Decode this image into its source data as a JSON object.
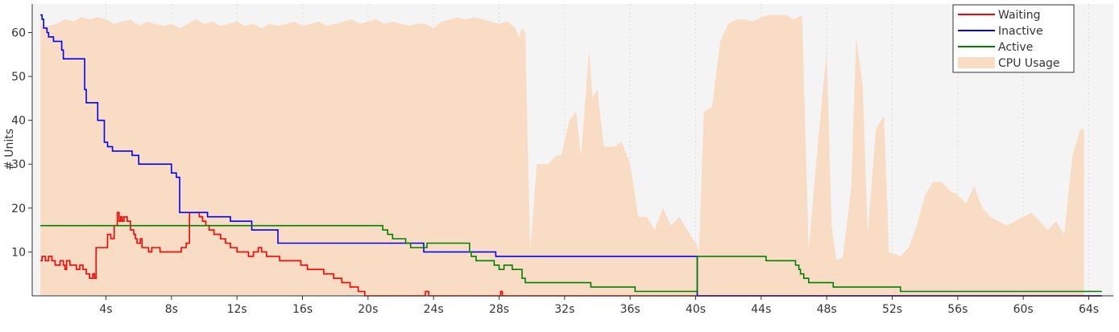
{
  "chart_data": {
    "type": "line",
    "ylabel": "# Units",
    "xlabel": "",
    "xlim": [
      -0.5,
      65.5
    ],
    "ylim": [
      0,
      66.5
    ],
    "x_ticks": [
      4,
      8,
      12,
      16,
      20,
      24,
      28,
      32,
      36,
      40,
      44,
      48,
      52,
      56,
      60,
      64
    ],
    "x_tick_labels": [
      "4s",
      "8s",
      "12s",
      "16s",
      "20s",
      "24s",
      "28s",
      "32s",
      "36s",
      "40s",
      "44s",
      "48s",
      "52s",
      "56s",
      "60s",
      "64s"
    ],
    "y_ticks": [
      10,
      20,
      30,
      40,
      50,
      60
    ],
    "y_tick_labels": [
      "10",
      "20",
      "30",
      "40",
      "50",
      "60"
    ],
    "grid": "vertical dotted",
    "legend_position": "top-right",
    "series": [
      {
        "name": "Waiting",
        "type": "step",
        "color": "#ff0000",
        "points": [
          [
            0.0,
            8
          ],
          [
            0.1,
            9
          ],
          [
            0.3,
            8
          ],
          [
            0.5,
            9
          ],
          [
            0.7,
            8
          ],
          [
            0.9,
            7
          ],
          [
            1.2,
            8
          ],
          [
            1.4,
            7
          ],
          [
            1.5,
            6
          ],
          [
            1.6,
            8
          ],
          [
            1.8,
            7
          ],
          [
            2.0,
            7
          ],
          [
            2.2,
            6
          ],
          [
            2.4,
            7
          ],
          [
            2.6,
            6
          ],
          [
            2.8,
            5
          ],
          [
            3.0,
            4
          ],
          [
            3.2,
            5
          ],
          [
            3.3,
            4
          ],
          [
            3.4,
            11
          ],
          [
            3.9,
            11
          ],
          [
            4.1,
            14
          ],
          [
            4.3,
            13
          ],
          [
            4.5,
            16
          ],
          [
            4.7,
            19
          ],
          [
            4.8,
            17
          ],
          [
            4.9,
            18
          ],
          [
            5.0,
            17
          ],
          [
            5.1,
            18
          ],
          [
            5.3,
            17
          ],
          [
            5.5,
            15
          ],
          [
            5.7,
            14
          ],
          [
            5.8,
            13
          ],
          [
            5.9,
            12
          ],
          [
            6.1,
            13
          ],
          [
            6.2,
            11
          ],
          [
            6.6,
            10
          ],
          [
            6.8,
            11
          ],
          [
            7.3,
            10
          ],
          [
            8.6,
            11
          ],
          [
            8.9,
            12
          ],
          [
            9.1,
            19
          ],
          [
            9.7,
            18
          ],
          [
            9.9,
            17
          ],
          [
            10.1,
            16
          ],
          [
            10.3,
            15
          ],
          [
            10.6,
            14
          ],
          [
            11.0,
            13
          ],
          [
            11.3,
            12
          ],
          [
            11.6,
            11
          ],
          [
            12.0,
            10
          ],
          [
            12.7,
            9
          ],
          [
            13.0,
            10
          ],
          [
            13.3,
            11
          ],
          [
            13.5,
            10
          ],
          [
            13.8,
            9
          ],
          [
            14.6,
            8
          ],
          [
            15.9,
            7
          ],
          [
            16.3,
            6
          ],
          [
            17.3,
            5
          ],
          [
            17.9,
            4
          ],
          [
            18.4,
            3
          ],
          [
            18.9,
            2
          ],
          [
            19.4,
            1
          ],
          [
            19.8,
            0
          ],
          [
            23.5,
            1
          ],
          [
            23.7,
            0
          ],
          [
            28.1,
            1
          ],
          [
            28.2,
            0
          ],
          [
            64.8,
            0
          ]
        ]
      },
      {
        "name": "Inactive",
        "type": "step",
        "color": "#0000ff",
        "points": [
          [
            0.0,
            64
          ],
          [
            0.1,
            63
          ],
          [
            0.2,
            61
          ],
          [
            0.4,
            60
          ],
          [
            0.5,
            59
          ],
          [
            0.8,
            58
          ],
          [
            1.3,
            56
          ],
          [
            1.4,
            54
          ],
          [
            2.7,
            47
          ],
          [
            2.8,
            44
          ],
          [
            3.5,
            40
          ],
          [
            3.9,
            35
          ],
          [
            4.1,
            34
          ],
          [
            4.4,
            33
          ],
          [
            5.6,
            32
          ],
          [
            6.0,
            30
          ],
          [
            8.0,
            28
          ],
          [
            8.3,
            27
          ],
          [
            8.5,
            19
          ],
          [
            10.2,
            18
          ],
          [
            11.6,
            17
          ],
          [
            12.9,
            15
          ],
          [
            14.5,
            12
          ],
          [
            23.4,
            10
          ],
          [
            27.8,
            9
          ],
          [
            40.1,
            0
          ],
          [
            64.8,
            0
          ]
        ]
      },
      {
        "name": "Active",
        "type": "step",
        "color": "#008000",
        "points": [
          [
            0.0,
            16
          ],
          [
            20.9,
            15
          ],
          [
            21.2,
            14
          ],
          [
            21.5,
            13
          ],
          [
            22.3,
            12
          ],
          [
            22.6,
            11
          ],
          [
            23.6,
            12
          ],
          [
            26.2,
            10
          ],
          [
            26.3,
            9
          ],
          [
            26.6,
            8
          ],
          [
            27.7,
            7
          ],
          [
            28.0,
            6
          ],
          [
            28.3,
            7
          ],
          [
            28.8,
            6
          ],
          [
            29.4,
            4
          ],
          [
            29.6,
            3
          ],
          [
            33.6,
            2
          ],
          [
            36.3,
            1
          ],
          [
            40.1,
            9
          ],
          [
            44.3,
            8
          ],
          [
            46.1,
            7
          ],
          [
            46.3,
            6
          ],
          [
            46.4,
            5
          ],
          [
            46.6,
            4
          ],
          [
            46.9,
            3
          ],
          [
            48.4,
            2
          ],
          [
            52.5,
            1
          ],
          [
            64.8,
            1
          ]
        ]
      },
      {
        "name": "CPU Usage",
        "type": "area",
        "color": "#f9dcc4",
        "points": [
          [
            0.0,
            62
          ],
          [
            0.5,
            61.5
          ],
          [
            1.0,
            62
          ],
          [
            1.5,
            63
          ],
          [
            2.0,
            62.5
          ],
          [
            2.5,
            63.5
          ],
          [
            3.0,
            63
          ],
          [
            3.5,
            63.5
          ],
          [
            4.0,
            63
          ],
          [
            4.5,
            62
          ],
          [
            5.0,
            62.5
          ],
          [
            5.5,
            63
          ],
          [
            6.0,
            61.5
          ],
          [
            6.5,
            62.5
          ],
          [
            7.0,
            62
          ],
          [
            7.5,
            61.5
          ],
          [
            8.0,
            62
          ],
          [
            8.5,
            61
          ],
          [
            9.0,
            62
          ],
          [
            9.5,
            63
          ],
          [
            10.0,
            62
          ],
          [
            10.5,
            62.5
          ],
          [
            11.0,
            61.5
          ],
          [
            11.5,
            62
          ],
          [
            12.0,
            62.5
          ],
          [
            12.5,
            61.5
          ],
          [
            13.0,
            62
          ],
          [
            13.5,
            61
          ],
          [
            14.0,
            62
          ],
          [
            14.5,
            61.5
          ],
          [
            15.0,
            62
          ],
          [
            15.5,
            62.5
          ],
          [
            16.0,
            61.5
          ],
          [
            16.5,
            62
          ],
          [
            17.0,
            62.5
          ],
          [
            17.5,
            61.5
          ],
          [
            18.0,
            62
          ],
          [
            18.5,
            62.5
          ],
          [
            19.0,
            63
          ],
          [
            19.5,
            62
          ],
          [
            20.0,
            62.5
          ],
          [
            20.5,
            63
          ],
          [
            21.0,
            62
          ],
          [
            21.5,
            62.5
          ],
          [
            22.0,
            62
          ],
          [
            22.5,
            61.5
          ],
          [
            23.0,
            62
          ],
          [
            23.5,
            62
          ],
          [
            24.0,
            61
          ],
          [
            24.5,
            62.5
          ],
          [
            25.0,
            63
          ],
          [
            25.5,
            63.5
          ],
          [
            26.0,
            63
          ],
          [
            26.5,
            63.5
          ],
          [
            27.0,
            63
          ],
          [
            27.5,
            62.5
          ],
          [
            28.0,
            62
          ],
          [
            28.5,
            62.5
          ],
          [
            29.0,
            61
          ],
          [
            29.2,
            59
          ],
          [
            29.4,
            61
          ],
          [
            29.6,
            60
          ],
          [
            29.9,
            10
          ],
          [
            30.3,
            30
          ],
          [
            31.0,
            30
          ],
          [
            31.5,
            32
          ],
          [
            31.8,
            32
          ],
          [
            32.3,
            40
          ],
          [
            32.7,
            42
          ],
          [
            33.0,
            32
          ],
          [
            33.5,
            56
          ],
          [
            33.7,
            45
          ],
          [
            34.0,
            47
          ],
          [
            34.4,
            34
          ],
          [
            35.0,
            34
          ],
          [
            35.5,
            35
          ],
          [
            36.0,
            30
          ],
          [
            36.5,
            18
          ],
          [
            37.0,
            18
          ],
          [
            37.5,
            15
          ],
          [
            38.0,
            20
          ],
          [
            38.5,
            16
          ],
          [
            39.0,
            18
          ],
          [
            39.5,
            15
          ],
          [
            40.0,
            12
          ],
          [
            40.2,
            10
          ],
          [
            40.5,
            42
          ],
          [
            41.0,
            43
          ],
          [
            41.5,
            58
          ],
          [
            42.0,
            62
          ],
          [
            42.5,
            63
          ],
          [
            43.0,
            63
          ],
          [
            43.5,
            62.5
          ],
          [
            44.0,
            63.5
          ],
          [
            44.5,
            64
          ],
          [
            45.0,
            64
          ],
          [
            45.5,
            64
          ],
          [
            46.0,
            63
          ],
          [
            46.5,
            64
          ],
          [
            46.9,
            10
          ],
          [
            47.2,
            24
          ],
          [
            47.6,
            40
          ],
          [
            48.0,
            56
          ],
          [
            48.3,
            16
          ],
          [
            48.6,
            8
          ],
          [
            49.0,
            9
          ],
          [
            49.5,
            25
          ],
          [
            49.8,
            59
          ],
          [
            50.2,
            48
          ],
          [
            50.5,
            14
          ],
          [
            51.0,
            38
          ],
          [
            51.5,
            41
          ],
          [
            51.8,
            10
          ],
          [
            52.5,
            9
          ],
          [
            53.0,
            11
          ],
          [
            53.5,
            16
          ],
          [
            54.0,
            23
          ],
          [
            54.5,
            26
          ],
          [
            55.0,
            26
          ],
          [
            55.5,
            24
          ],
          [
            56.0,
            23
          ],
          [
            56.5,
            21
          ],
          [
            57.0,
            25
          ],
          [
            57.5,
            20
          ],
          [
            58.0,
            18
          ],
          [
            58.5,
            17
          ],
          [
            59.0,
            16
          ],
          [
            59.5,
            17
          ],
          [
            60.0,
            18
          ],
          [
            60.5,
            19
          ],
          [
            61.0,
            17
          ],
          [
            61.5,
            15
          ],
          [
            62.0,
            17
          ],
          [
            62.5,
            14
          ],
          [
            63.0,
            32
          ],
          [
            63.5,
            38
          ],
          [
            63.7,
            38
          ]
        ]
      }
    ]
  },
  "legend": {
    "items": [
      {
        "label": "Waiting",
        "color": "#ff0000",
        "kind": "line"
      },
      {
        "label": "Inactive",
        "color": "#0000ff",
        "kind": "line"
      },
      {
        "label": "Active",
        "color": "#008000",
        "kind": "line"
      },
      {
        "label": "CPU Usage",
        "color": "#f9dcc4",
        "kind": "patch"
      }
    ]
  },
  "colors": {
    "plot_background": "#f4f4f4",
    "grid": "#dddddd",
    "axis": "#333333",
    "text": "#333333"
  }
}
